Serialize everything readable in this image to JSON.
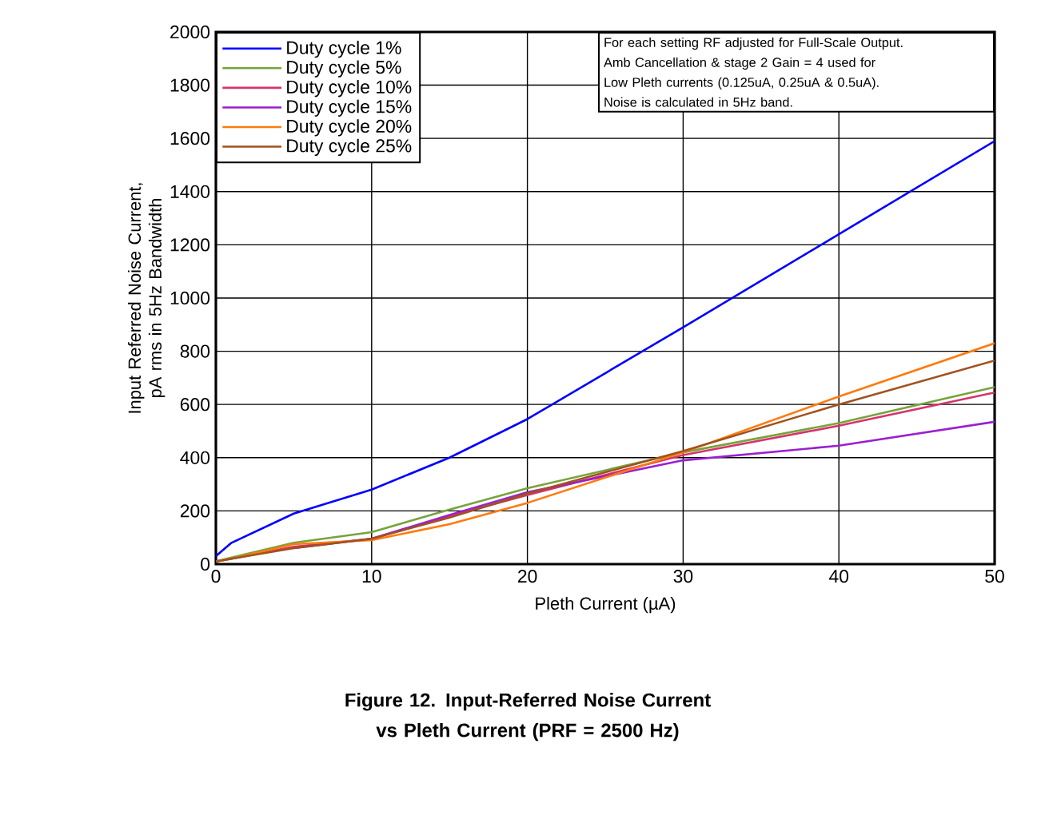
{
  "chart_data": {
    "type": "line",
    "title": "Figure 12. Input-Referred Noise Current vs Pleth Current (PRF = 2500 Hz)",
    "xlabel": "Pleth Current (µA)",
    "ylabel": "Input Referred Noise Current, pA rms in 5Hz Bandwidth",
    "annotations": [
      "For each setting RF adjusted for Full-Scale Output.",
      "Amb Cancellation & stage 2 Gain = 4 used for",
      "Low Pleth currents (0.125uA, 0.25uA & 0.5uA).",
      "Noise is calculated in 5Hz band."
    ],
    "x": [
      0,
      1,
      5,
      10,
      15,
      20,
      30,
      40,
      50
    ],
    "series": [
      {
        "name": "Duty cycle 1%",
        "color": "#0000ff",
        "values": [
          30,
          80,
          190,
          280,
          400,
          545,
          890,
          1240,
          1590
        ]
      },
      {
        "name": "Duty cycle 5%",
        "color": "#77a33c",
        "values": [
          10,
          25,
          80,
          120,
          205,
          285,
          420,
          530,
          665
        ]
      },
      {
        "name": "Duty cycle 10%",
        "color": "#d6336c",
        "values": [
          10,
          20,
          65,
          95,
          180,
          260,
          410,
          520,
          645
        ]
      },
      {
        "name": "Duty cycle 15%",
        "color": "#9b1fd0",
        "values": [
          null,
          null,
          60,
          95,
          185,
          270,
          390,
          445,
          535
        ]
      },
      {
        "name": "Duty cycle 20%",
        "color": "#ff7a0d",
        "values": [
          10,
          20,
          75,
          90,
          150,
          230,
          420,
          630,
          830
        ]
      },
      {
        "name": "Duty cycle 25%",
        "color": "#a0521d",
        "values": [
          10,
          20,
          60,
          95,
          175,
          265,
          425,
          600,
          765
        ]
      }
    ],
    "xlim": [
      0,
      50
    ],
    "xticks": [
      0,
      10,
      20,
      30,
      40,
      50
    ],
    "ylim": [
      0,
      2000
    ],
    "yticks": [
      0,
      200,
      400,
      600,
      800,
      1000,
      1200,
      1400,
      1600,
      1800,
      2000
    ],
    "grid": true,
    "legend": "top left",
    "marker": "none",
    "line_style": "solid"
  }
}
